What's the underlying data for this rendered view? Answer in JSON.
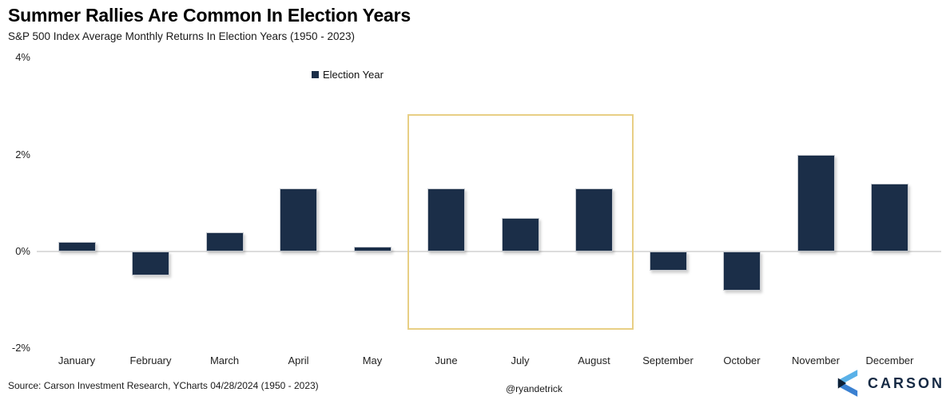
{
  "header": {
    "title": "Summer Rallies Are Common In Election Years",
    "subtitle": "S&P 500 Index Average Monthly Returns In Election Years (1950 - 2023)"
  },
  "chart_data": {
    "type": "bar",
    "title": "Summer Rallies Are Common In Election Years",
    "subtitle": "S&P 500 Index Average Monthly Returns In Election Years (1950 - 2023)",
    "series_label": "Election Year",
    "categories": [
      "January",
      "February",
      "March",
      "April",
      "May",
      "June",
      "July",
      "August",
      "September",
      "October",
      "November",
      "December"
    ],
    "values": [
      0.2,
      -0.5,
      0.4,
      1.3,
      0.1,
      1.3,
      0.7,
      1.3,
      -0.4,
      -0.8,
      2.0,
      1.4
    ],
    "unit": "%",
    "ylim": [
      -2,
      4
    ],
    "yticks": [
      {
        "label": "4%",
        "value": 4
      },
      {
        "label": "2%",
        "value": 2
      },
      {
        "label": "0%",
        "value": 0
      },
      {
        "label": "-2%",
        "value": -2
      }
    ],
    "grid": false,
    "zero_line": true,
    "legend_position": "top-center",
    "bar_color": "#1b2e48",
    "highlight": {
      "months": [
        "June",
        "July",
        "August"
      ],
      "box_color": "#e8cf85"
    }
  },
  "footer": {
    "source": "Source: Carson Investment Research, YCharts 04/28/2024 (1950 - 2023)",
    "handle": "@ryandetrick",
    "brand": "CARSON"
  },
  "colors": {
    "bar": "#1b2e48",
    "highlight_box": "#e8cf85",
    "zero_line": "#dcdcdc",
    "logo_light_blue": "#5ab1e8",
    "logo_mid_blue": "#3a80d1",
    "logo_navy": "#0d2036"
  }
}
